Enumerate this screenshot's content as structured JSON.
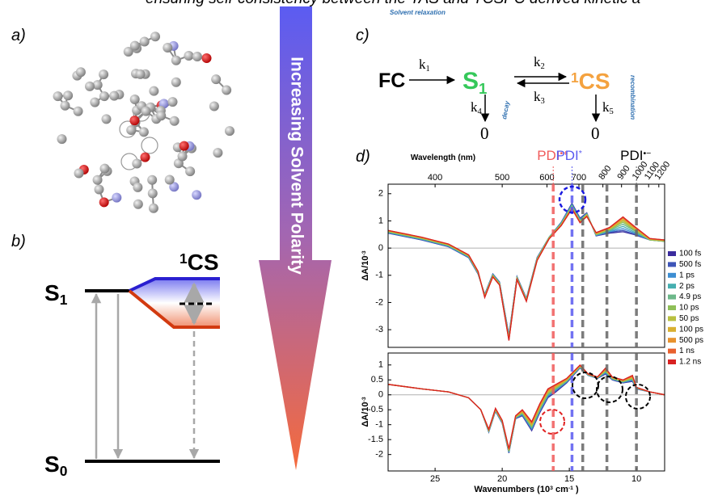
{
  "caption_fragment": "ensuring self-consistency between the TAS and TCSPC derived kinetic a",
  "panel_labels": [
    "a)",
    "b)",
    "c)",
    "d)"
  ],
  "energy_diagram": {
    "s1": [
      {
        "text": "S"
      },
      {
        "sub": "1"
      }
    ],
    "s0": [
      {
        "text": "S"
      },
      {
        "sub": "0"
      }
    ],
    "cs": [
      {
        "sup": "1"
      },
      {
        "text": "CS"
      }
    ]
  },
  "arrow_text": "Increasing Solvent Polarity",
  "scheme": {
    "fc": "FC",
    "s1": [
      {
        "text": "S"
      },
      {
        "sub": "1"
      }
    ],
    "cs": [
      {
        "sup": "1"
      },
      {
        "text": "CS"
      }
    ],
    "k1": [
      {
        "text": "k"
      },
      {
        "sub": "1"
      }
    ],
    "k2": [
      {
        "text": "k"
      },
      {
        "sub": "2"
      }
    ],
    "k3": [
      {
        "text": "k"
      },
      {
        "sub": "3"
      }
    ],
    "k4": [
      {
        "text": "k"
      },
      {
        "sub": "4"
      }
    ],
    "k5": [
      {
        "text": "k"
      },
      {
        "sub": "5"
      }
    ],
    "zero_left": "0",
    "zero_right": "0",
    "decay": "decay",
    "recombination": "recombination",
    "relaxation": "Solvent relaxation"
  },
  "chart_data": [
    {
      "type": "line",
      "x": [
        28.5,
        26,
        24,
        22.5,
        21.8,
        21.3,
        20.7,
        20.2,
        19.5,
        18.9,
        18.2,
        17.4,
        16.5,
        15.6,
        14.8,
        14.2,
        13.7,
        13,
        12,
        11,
        10.2,
        9,
        7.9
      ],
      "xlim": [
        28.5,
        7.9
      ],
      "ylim": [
        -3.65,
        2.35
      ],
      "yticks": [
        -3,
        -2,
        -1,
        0,
        1,
        2
      ],
      "ylabel": [
        {
          "text": "ΔA/10"
        },
        {
          "sup": "-3"
        }
      ],
      "x2label": "Wavelength (nm)",
      "x2ticks": [
        400,
        500,
        600,
        700,
        800,
        900,
        1000,
        1100,
        1200
      ],
      "zero_line": true,
      "markers": [
        {
          "x": 16.2,
          "color": "#f05a5a",
          "label": [
            {
              "text": "PDI"
            },
            {
              "sup": "•+"
            }
          ]
        },
        {
          "x": 14.8,
          "color": "#5a5af0",
          "label": [
            {
              "text": "PDI"
            },
            {
              "sup": "*"
            }
          ]
        },
        {
          "x": 14.0,
          "color": "#666666"
        },
        {
          "x": 12.2,
          "color": "#666666"
        },
        {
          "x": 10.0,
          "color": "#666666",
          "label": [
            {
              "text": "PDI"
            },
            {
              "sup": "•−"
            }
          ]
        }
      ],
      "series": [
        {
          "name": "100 fs",
          "color": "#3b2c9e",
          "values": [
            0.55,
            0.3,
            0.05,
            -0.35,
            -0.95,
            -1.7,
            -0.95,
            -1.25,
            -3.2,
            -1.05,
            -1.85,
            -0.35,
            0.4,
            0.95,
            1.65,
            1.1,
            1.3,
            0.45,
            0.55,
            0.6,
            0.5,
            0.3,
            0.25
          ]
        },
        {
          "name": "500 fs",
          "color": "#3e55b8",
          "values": [
            0.55,
            0.3,
            0.05,
            -0.35,
            -0.95,
            -1.7,
            -0.95,
            -1.25,
            -3.2,
            -1.05,
            -1.85,
            -0.35,
            0.4,
            0.95,
            1.62,
            1.08,
            1.28,
            0.45,
            0.58,
            0.65,
            0.52,
            0.3,
            0.25
          ]
        },
        {
          "name": "1 ps",
          "color": "#3d8ed2",
          "values": [
            0.57,
            0.32,
            0.07,
            -0.33,
            -0.93,
            -1.72,
            -0.97,
            -1.27,
            -3.25,
            -1.07,
            -1.87,
            -0.37,
            0.4,
            0.93,
            1.6,
            1.05,
            1.27,
            0.47,
            0.6,
            0.72,
            0.56,
            0.3,
            0.25
          ]
        },
        {
          "name": "2 ps",
          "color": "#46afb0",
          "values": [
            0.58,
            0.33,
            0.08,
            -0.32,
            -0.92,
            -1.73,
            -0.98,
            -1.28,
            -3.27,
            -1.08,
            -1.88,
            -0.38,
            0.4,
            0.92,
            1.58,
            1.03,
            1.26,
            0.48,
            0.63,
            0.8,
            0.6,
            0.3,
            0.25
          ]
        },
        {
          "name": "4.9 ps",
          "color": "#6db88a",
          "values": [
            0.6,
            0.35,
            0.1,
            -0.3,
            -0.9,
            -1.75,
            -1.0,
            -1.3,
            -3.3,
            -1.1,
            -1.9,
            -0.4,
            0.4,
            0.9,
            1.55,
            1.0,
            1.25,
            0.5,
            0.66,
            0.88,
            0.65,
            0.3,
            0.25
          ]
        },
        {
          "name": "10 ps",
          "color": "#8fbf58",
          "values": [
            0.6,
            0.35,
            0.1,
            -0.3,
            -0.9,
            -1.76,
            -1.0,
            -1.3,
            -3.32,
            -1.1,
            -1.9,
            -0.4,
            0.38,
            0.88,
            1.52,
            0.98,
            1.23,
            0.5,
            0.68,
            0.95,
            0.68,
            0.3,
            0.25
          ]
        },
        {
          "name": "50 ps",
          "color": "#b9c040",
          "values": [
            0.62,
            0.37,
            0.12,
            -0.28,
            -0.88,
            -1.77,
            -1.02,
            -1.32,
            -3.33,
            -1.12,
            -1.92,
            -0.42,
            0.37,
            0.87,
            1.5,
            0.97,
            1.22,
            0.52,
            0.7,
            1.0,
            0.72,
            0.32,
            0.27
          ]
        },
        {
          "name": "100 ps",
          "color": "#d9b030",
          "values": [
            0.63,
            0.38,
            0.13,
            -0.27,
            -0.87,
            -1.78,
            -1.03,
            -1.33,
            -3.35,
            -1.13,
            -1.93,
            -0.43,
            0.36,
            0.86,
            1.48,
            0.96,
            1.2,
            0.53,
            0.72,
            1.05,
            0.75,
            0.33,
            0.28
          ]
        },
        {
          "name": "500 ps",
          "color": "#e8922e",
          "values": [
            0.64,
            0.39,
            0.14,
            -0.26,
            -0.86,
            -1.8,
            -1.05,
            -1.35,
            -3.37,
            -1.15,
            -1.95,
            -0.45,
            0.35,
            0.85,
            1.46,
            0.95,
            1.18,
            0.55,
            0.74,
            1.1,
            0.78,
            0.34,
            0.29
          ]
        },
        {
          "name": "1 ns",
          "color": "#e8602e",
          "values": [
            0.65,
            0.4,
            0.15,
            -0.25,
            -0.85,
            -1.8,
            -1.05,
            -1.35,
            -3.38,
            -1.15,
            -1.95,
            -0.45,
            0.35,
            0.84,
            1.45,
            0.94,
            1.17,
            0.56,
            0.75,
            1.12,
            0.8,
            0.35,
            0.3
          ]
        },
        {
          "name": "1.2 ns",
          "color": "#d82222",
          "values": [
            0.65,
            0.4,
            0.15,
            -0.25,
            -0.85,
            -1.82,
            -1.06,
            -1.36,
            -3.4,
            -1.16,
            -1.96,
            -0.46,
            0.34,
            0.83,
            1.44,
            0.93,
            1.16,
            0.57,
            0.76,
            1.15,
            0.82,
            0.35,
            0.3
          ]
        }
      ]
    },
    {
      "type": "line",
      "x": [
        28.5,
        26,
        24,
        22.5,
        21.6,
        21.0,
        20.5,
        20.0,
        19.5,
        19.0,
        18.5,
        17.8,
        17.2,
        16.6,
        16.0,
        15.2,
        14.2,
        13.6,
        12.9,
        12.3,
        11.8,
        11,
        10.3,
        10.0,
        9,
        7.9
      ],
      "xlim": [
        28.5,
        7.9
      ],
      "ylim": [
        -2.55,
        1.4
      ],
      "yticks": [
        -2,
        -1.5,
        -1,
        -0.5,
        0,
        0.5,
        1
      ],
      "xticks": [
        25,
        20,
        15,
        10
      ],
      "ylabel": [
        {
          "text": "ΔA/10"
        },
        {
          "sup": "-3"
        }
      ],
      "xlabel": [
        {
          "text": "Wavenumbers (10"
        },
        {
          "sup": "3"
        },
        {
          "text": " cm"
        },
        {
          "sup": "-1"
        },
        {
          "text": " )"
        }
      ],
      "zero_line": true,
      "series": [
        {
          "color": "#3b2c9e",
          "values": [
            0.35,
            0.2,
            0.1,
            -0.1,
            -0.5,
            -1.25,
            -0.55,
            -0.95,
            -1.95,
            -0.8,
            -0.7,
            -1.2,
            -0.6,
            -0.1,
            0.1,
            0.4,
            0.9,
            0.65,
            0.55,
            0.7,
            0.5,
            0.4,
            0.45,
            0.2,
            0.1,
            0
          ]
        },
        {
          "color": "#3e55b8",
          "values": [
            0.35,
            0.2,
            0.1,
            -0.1,
            -0.5,
            -1.24,
            -0.54,
            -0.94,
            -1.94,
            -0.79,
            -0.68,
            -1.17,
            -0.57,
            -0.07,
            0.13,
            0.42,
            0.91,
            0.66,
            0.56,
            0.72,
            0.51,
            0.41,
            0.47,
            0.2,
            0.1,
            0
          ]
        },
        {
          "color": "#3d8ed2",
          "values": [
            0.35,
            0.2,
            0.1,
            -0.1,
            -0.5,
            -1.23,
            -0.53,
            -0.93,
            -1.92,
            -0.78,
            -0.66,
            -1.14,
            -0.54,
            -0.04,
            0.15,
            0.43,
            0.92,
            0.66,
            0.56,
            0.74,
            0.52,
            0.42,
            0.49,
            0.21,
            0.1,
            0
          ]
        },
        {
          "color": "#46afb0",
          "values": [
            0.35,
            0.2,
            0.1,
            -0.1,
            -0.5,
            -1.22,
            -0.52,
            -0.92,
            -1.91,
            -0.77,
            -0.64,
            -1.11,
            -0.51,
            -0.01,
            0.18,
            0.45,
            0.93,
            0.67,
            0.57,
            0.76,
            0.53,
            0.43,
            0.51,
            0.22,
            0.1,
            0
          ]
        },
        {
          "color": "#6db88a",
          "values": [
            0.35,
            0.2,
            0.1,
            -0.1,
            -0.5,
            -1.21,
            -0.51,
            -0.91,
            -1.89,
            -0.76,
            -0.62,
            -1.08,
            -0.48,
            0.02,
            0.2,
            0.46,
            0.94,
            0.67,
            0.57,
            0.78,
            0.54,
            0.44,
            0.53,
            0.22,
            0.1,
            0
          ]
        },
        {
          "color": "#8fbf58",
          "values": [
            0.35,
            0.2,
            0.1,
            -0.1,
            -0.5,
            -1.2,
            -0.5,
            -0.9,
            -1.88,
            -0.75,
            -0.6,
            -1.05,
            -0.45,
            0.05,
            0.23,
            0.48,
            0.95,
            0.68,
            0.58,
            0.8,
            0.55,
            0.45,
            0.55,
            0.23,
            0.1,
            0
          ]
        },
        {
          "color": "#b9c040",
          "values": [
            0.35,
            0.2,
            0.1,
            -0.1,
            -0.5,
            -1.19,
            -0.49,
            -0.89,
            -1.86,
            -0.74,
            -0.58,
            -1.02,
            -0.42,
            0.08,
            0.25,
            0.49,
            0.96,
            0.68,
            0.58,
            0.82,
            0.56,
            0.46,
            0.57,
            0.23,
            0.1,
            0
          ]
        },
        {
          "color": "#d9b030",
          "values": [
            0.35,
            0.2,
            0.1,
            -0.1,
            -0.5,
            -1.18,
            -0.48,
            -0.88,
            -1.85,
            -0.73,
            -0.56,
            -0.99,
            -0.39,
            0.11,
            0.28,
            0.51,
            0.97,
            0.69,
            0.59,
            0.84,
            0.57,
            0.47,
            0.59,
            0.24,
            0.1,
            0
          ]
        },
        {
          "color": "#e8922e",
          "values": [
            0.35,
            0.2,
            0.1,
            -0.1,
            -0.5,
            -1.17,
            -0.47,
            -0.87,
            -1.83,
            -0.72,
            -0.54,
            -0.96,
            -0.36,
            0.14,
            0.3,
            0.52,
            0.98,
            0.69,
            0.59,
            0.86,
            0.58,
            0.48,
            0.61,
            0.24,
            0.1,
            0
          ]
        },
        {
          "color": "#e8602e",
          "values": [
            0.35,
            0.2,
            0.1,
            -0.1,
            -0.5,
            -1.16,
            -0.46,
            -0.86,
            -1.82,
            -0.71,
            -0.52,
            -0.93,
            -0.33,
            0.17,
            0.33,
            0.54,
            0.99,
            0.7,
            0.6,
            0.88,
            0.59,
            0.49,
            0.63,
            0.25,
            0.1,
            0
          ]
        },
        {
          "color": "#d82222",
          "values": [
            0.35,
            0.2,
            0.1,
            -0.1,
            -0.5,
            -1.15,
            -0.45,
            -0.85,
            -1.8,
            -0.7,
            -0.5,
            -0.9,
            -0.3,
            0.2,
            0.35,
            0.55,
            1.0,
            0.7,
            0.6,
            0.9,
            0.6,
            0.5,
            0.65,
            0.25,
            0.1,
            0
          ]
        }
      ]
    }
  ]
}
